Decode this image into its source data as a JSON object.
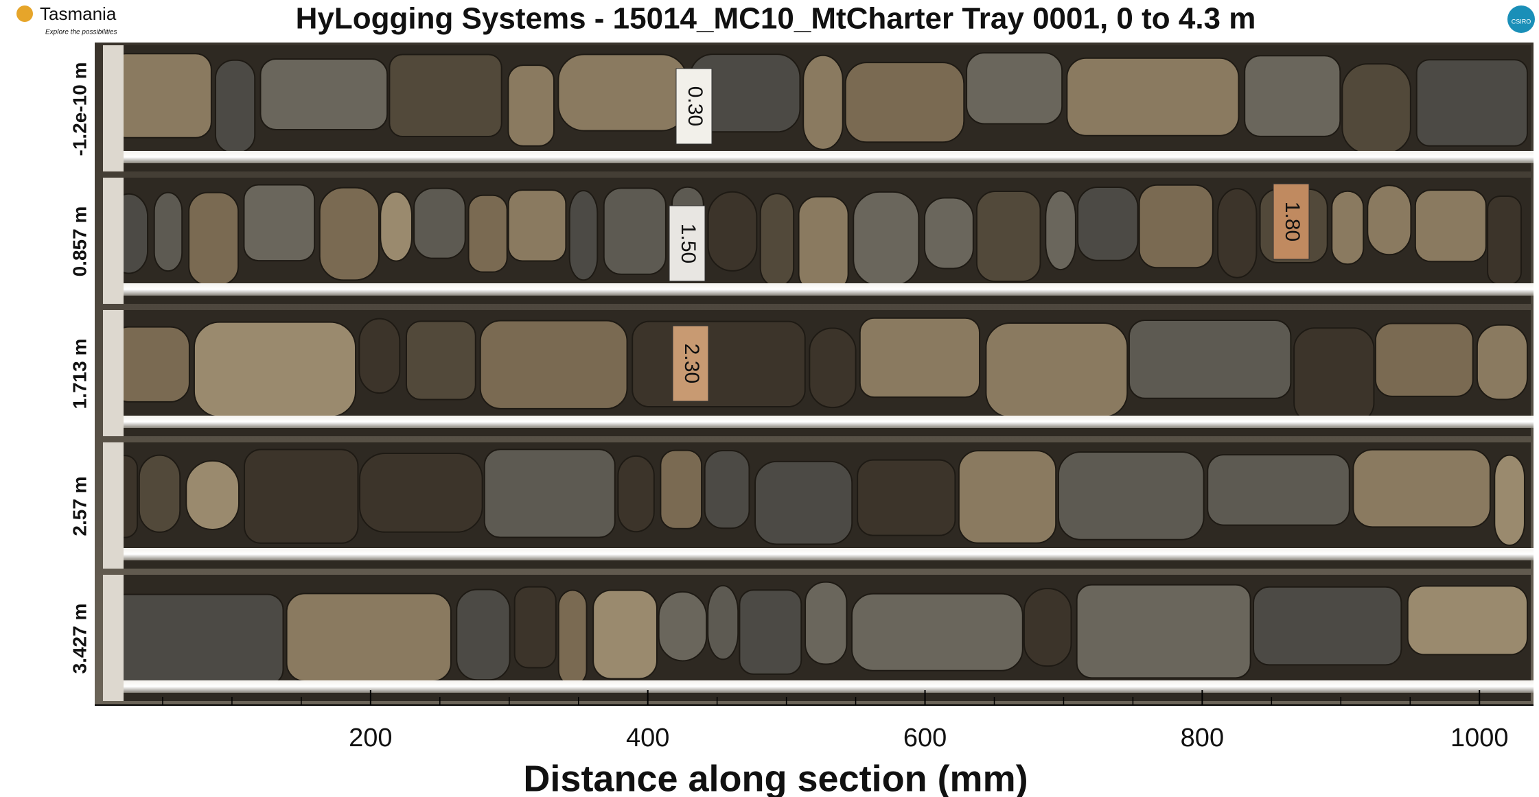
{
  "chart_data": {
    "type": "image",
    "title": "HyLogging Systems  -  15014_MC10_MtCharter  Tray 0001,  0 to 4.3 m",
    "xlabel": "Distance along section (mm)",
    "xlim": [
      0,
      1040
    ],
    "xticks": [
      200,
      400,
      600,
      800,
      1000
    ],
    "xminorticks": [
      50,
      100,
      150,
      250,
      300,
      350,
      450,
      500,
      550,
      650,
      700,
      750,
      850,
      900,
      950
    ],
    "rows": [
      "-1.2e-10 m",
      "0.857 m",
      "1.713 m",
      "2.57 m",
      "3.427 m"
    ],
    "core_tags": [
      "0.30",
      "1.50",
      "1.80",
      "2.30"
    ],
    "logo_left": "Tasmania",
    "logo_left_tagline": "Explore the possibilities",
    "logo_right": "CSIRO"
  }
}
